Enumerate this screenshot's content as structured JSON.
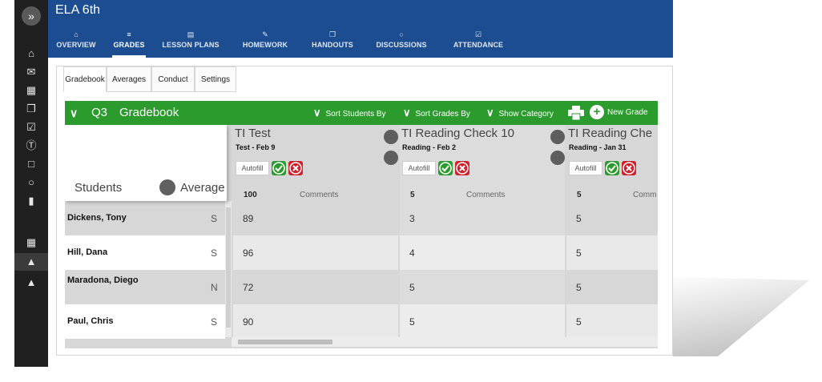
{
  "rail": {
    "toggle": "»",
    "icons": [
      "home-icon",
      "mail-icon",
      "calendar-icon",
      "copy-icon",
      "clipboard-check-icon",
      "dollar-icon",
      "file-icon",
      "chat-icon",
      "document-icon",
      "grid-icon",
      "graduation-cap-icon",
      "graduation-cap-icon"
    ]
  },
  "header": {
    "course_title": "ELA 6th",
    "nav": [
      {
        "label": "OVERVIEW",
        "icon": "home-icon"
      },
      {
        "label": "GRADES",
        "icon": "grades-icon"
      },
      {
        "label": "LESSON PLANS",
        "icon": "doc-icon"
      },
      {
        "label": "HOMEWORK",
        "icon": "pencil-icon"
      },
      {
        "label": "HANDOUTS",
        "icon": "copy-icon"
      },
      {
        "label": "DISCUSSIONS",
        "icon": "chat-icon"
      },
      {
        "label": "ATTENDANCE",
        "icon": "clipboard-check-icon"
      }
    ],
    "active_nav": "GRADES"
  },
  "subtabs": [
    "Gradebook",
    "Averages",
    "Conduct",
    "Settings"
  ],
  "gradebook": {
    "term": "Q3",
    "title": "Gradebook",
    "sort_students": "Sort Students By",
    "sort_grades": "Sort Grades By",
    "show_category": "Show Category",
    "new_grade": "New Grade",
    "students_label": "Students",
    "average_label": "Average",
    "autofill": "Autofill",
    "comments": "Comments",
    "students": [
      {
        "name": "Dickens, Tony",
        "grade": "S"
      },
      {
        "name": "Hill, Dana",
        "grade": "S"
      },
      {
        "name": "Maradona, Diego",
        "grade": "N"
      },
      {
        "name": "Paul, Chris",
        "grade": "S"
      }
    ],
    "assignments": [
      {
        "title": "TI Test",
        "sub": "Test - Feb 9",
        "points": "100",
        "scores": [
          "89",
          "96",
          "72",
          "90"
        ]
      },
      {
        "title": "TI Reading Check 10",
        "sub": "Reading - Feb 2",
        "points": "5",
        "scores": [
          "3",
          "4",
          "5",
          "5"
        ]
      },
      {
        "title": "TI Reading Che",
        "sub": "Reading - Jan 31",
        "points": "5",
        "comments": "Comm",
        "scores": [
          "5",
          "5",
          "5",
          "5"
        ]
      }
    ]
  },
  "colors": {
    "header": "#1c4d91",
    "green_bar": "#2c9b2e",
    "rail": "#202020"
  }
}
